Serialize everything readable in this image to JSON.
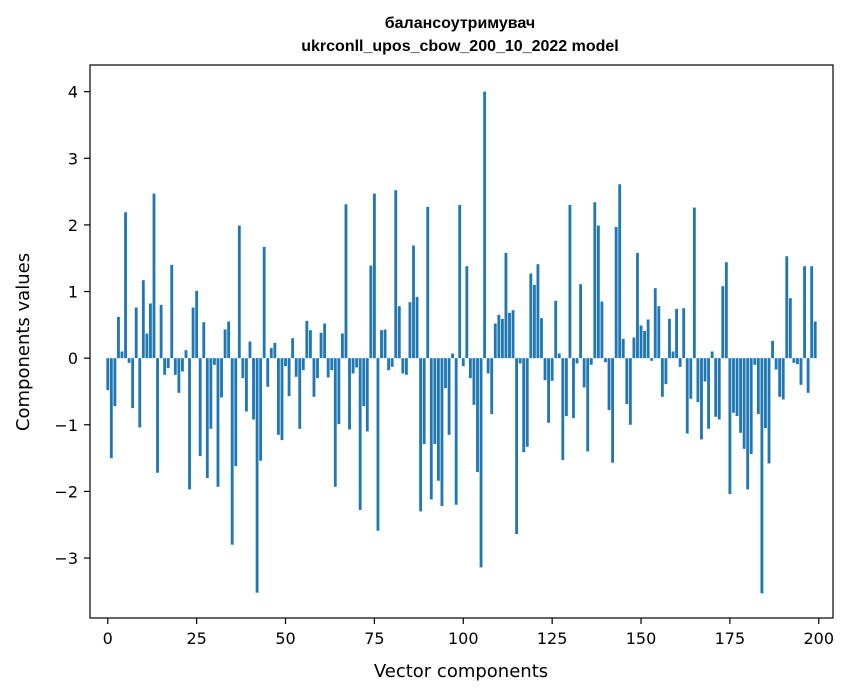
{
  "chart_data": {
    "type": "bar",
    "title": "балансоутримувач",
    "subtitle": "ukrconll_upos_cbow_200_10_2022 model",
    "xlabel": "Vector components",
    "ylabel": "Components values",
    "xlim": [
      -5,
      204
    ],
    "ylim": [
      -3.9,
      4.4
    ],
    "xticks": [
      0,
      25,
      50,
      75,
      100,
      125,
      150,
      175,
      200
    ],
    "yticks": [
      -3,
      -2,
      -1,
      0,
      1,
      2,
      3,
      4
    ],
    "ytick_labels": [
      "−3",
      "−2",
      "−1",
      "0",
      "1",
      "2",
      "3",
      "4"
    ],
    "bar_color": "#1f77b4",
    "grid": false,
    "legend": "none",
    "x": [
      0,
      1,
      2,
      3,
      4,
      5,
      6,
      7,
      8,
      9,
      10,
      11,
      12,
      13,
      14,
      15,
      16,
      17,
      18,
      19,
      20,
      21,
      22,
      23,
      24,
      25,
      26,
      27,
      28,
      29,
      30,
      31,
      32,
      33,
      34,
      35,
      36,
      37,
      38,
      39,
      40,
      41,
      42,
      43,
      44,
      45,
      46,
      47,
      48,
      49,
      50,
      51,
      52,
      53,
      54,
      55,
      56,
      57,
      58,
      59,
      60,
      61,
      62,
      63,
      64,
      65,
      66,
      67,
      68,
      69,
      70,
      71,
      72,
      73,
      74,
      75,
      76,
      77,
      78,
      79,
      80,
      81,
      82,
      83,
      84,
      85,
      86,
      87,
      88,
      89,
      90,
      91,
      92,
      93,
      94,
      95,
      96,
      97,
      98,
      99,
      100,
      101,
      102,
      103,
      104,
      105,
      106,
      107,
      108,
      109,
      110,
      111,
      112,
      113,
      114,
      115,
      116,
      117,
      118,
      119,
      120,
      121,
      122,
      123,
      124,
      125,
      126,
      127,
      128,
      129,
      130,
      131,
      132,
      133,
      134,
      135,
      136,
      137,
      138,
      139,
      140,
      141,
      142,
      143,
      144,
      145,
      146,
      147,
      148,
      149,
      150,
      151,
      152,
      153,
      154,
      155,
      156,
      157,
      158,
      159,
      160,
      161,
      162,
      163,
      164,
      165,
      166,
      167,
      168,
      169,
      170,
      171,
      172,
      173,
      174,
      175,
      176,
      177,
      178,
      179,
      180,
      181,
      182,
      183,
      184,
      185,
      186,
      187,
      188,
      189,
      190,
      191,
      192,
      193,
      194,
      195,
      196,
      197,
      198,
      199
    ],
    "values": [
      -0.48,
      -1.5,
      -0.72,
      0.62,
      0.1,
      2.19,
      -0.07,
      -0.75,
      0.76,
      -1.04,
      1.17,
      0.37,
      0.82,
      2.47,
      -1.72,
      0.8,
      -0.25,
      -0.15,
      1.4,
      -0.25,
      -0.52,
      -0.2,
      0.12,
      -1.97,
      0.76,
      1.01,
      -1.47,
      0.54,
      -1.8,
      -1.06,
      -0.1,
      -1.93,
      -0.59,
      0.43,
      0.55,
      -2.8,
      -1.62,
      1.99,
      -0.3,
      -0.8,
      0.25,
      -0.92,
      -3.52,
      -1.54,
      1.67,
      -0.43,
      0.15,
      0.23,
      -1.15,
      -1.23,
      -0.12,
      -0.57,
      0.3,
      -0.28,
      -1.06,
      -0.18,
      0.56,
      0.42,
      -0.58,
      -0.3,
      0.38,
      0.52,
      -0.29,
      -0.18,
      -1.93,
      -0.99,
      0.37,
      2.31,
      -1.07,
      -0.23,
      -0.14,
      -2.28,
      -0.72,
      -1.1,
      1.39,
      2.47,
      -2.59,
      0.42,
      0.43,
      -0.18,
      -0.13,
      2.52,
      0.78,
      -0.23,
      -0.25,
      0.84,
      1.69,
      0.92,
      -2.3,
      -1.29,
      2.27,
      -2.12,
      -1.29,
      -1.84,
      -2.22,
      -0.45,
      -1.15,
      0.07,
      -2.2,
      2.3,
      -0.12,
      1.38,
      -0.3,
      -0.7,
      -1.71,
      -3.14,
      4.0,
      -0.23,
      -0.84,
      0.52,
      0.65,
      0.59,
      1.58,
      0.68,
      0.72,
      -2.64,
      -0.08,
      -1.41,
      -1.33,
      1.27,
      1.1,
      1.41,
      0.6,
      -0.33,
      -0.97,
      -0.34,
      0.86,
      0.07,
      -1.53,
      -0.87,
      2.3,
      -0.9,
      -0.08,
      1.11,
      -0.44,
      -1.4,
      -0.1,
      2.34,
      1.99,
      0.85,
      -0.06,
      -0.78,
      -1.57,
      1.97,
      2.61,
      0.29,
      -0.69,
      -1.0,
      0.31,
      1.58,
      0.49,
      0.41,
      0.58,
      -0.04,
      1.05,
      0.78,
      -0.58,
      -0.39,
      0.59,
      0.1,
      0.74,
      -0.13,
      0.75,
      -1.13,
      -0.61,
      2.26,
      -0.66,
      -1.22,
      -0.35,
      -1.06,
      0.1,
      -0.88,
      -0.92,
      1.08,
      1.44,
      -2.04,
      -0.82,
      -0.87,
      -1.12,
      -1.36,
      -1.97,
      -1.44,
      -0.1,
      -0.84,
      -3.53,
      -1.05,
      -1.58,
      0.26,
      -0.17,
      -0.58,
      -0.62,
      1.53,
      0.9,
      -0.07,
      -0.09,
      -0.4,
      1.38,
      -0.52,
      1.38,
      0.55
    ]
  }
}
